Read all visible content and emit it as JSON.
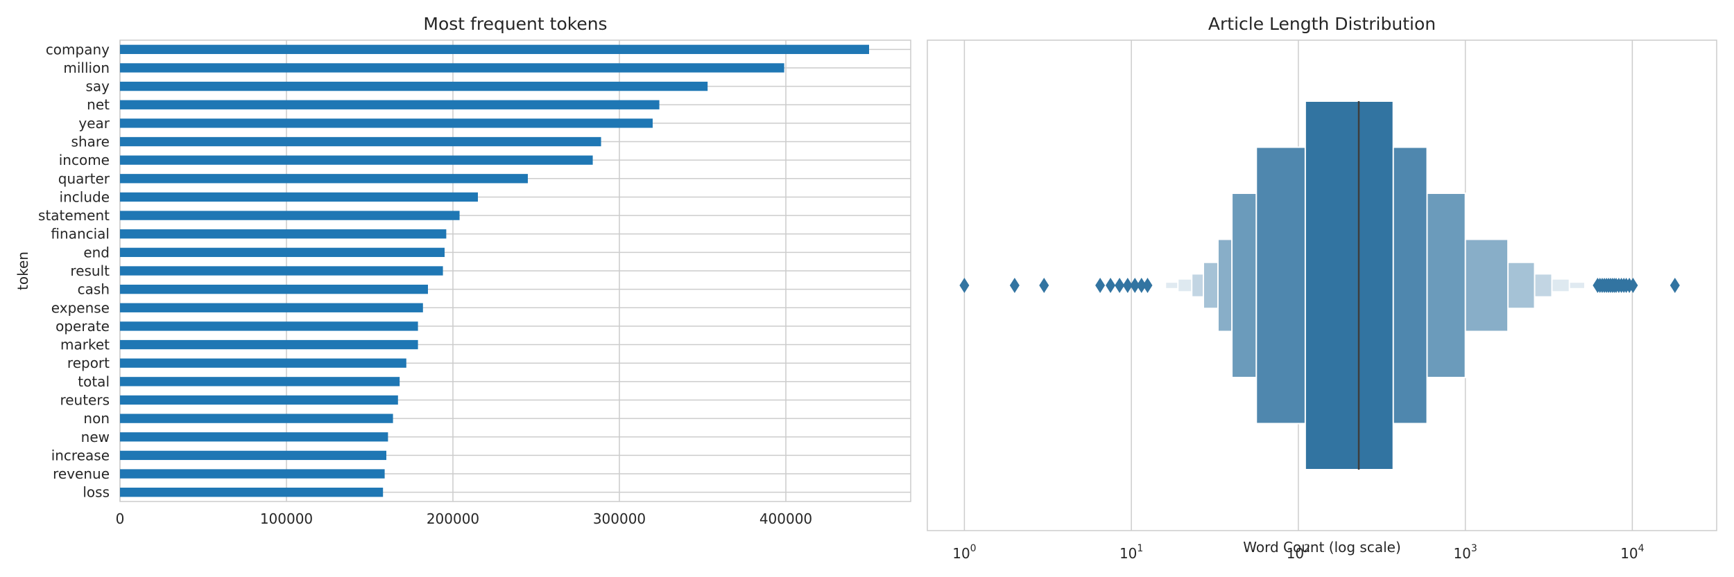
{
  "chart_data": [
    {
      "type": "bar",
      "orientation": "horizontal",
      "title": "Most frequent tokens",
      "xlabel": "",
      "ylabel": "token",
      "xlim": [
        0,
        475000
      ],
      "xticks": [
        0,
        100000,
        200000,
        300000,
        400000
      ],
      "xtick_labels": [
        "0",
        "100000",
        "200000",
        "300000",
        "400000"
      ],
      "grid": true,
      "color": "#1f77b4",
      "categories": [
        "company",
        "million",
        "say",
        "net",
        "year",
        "share",
        "income",
        "quarter",
        "include",
        "statement",
        "financial",
        "end",
        "result",
        "cash",
        "expense",
        "operate",
        "market",
        "report",
        "total",
        "reuters",
        "non",
        "new",
        "increase",
        "revenue",
        "loss"
      ],
      "values": [
        450000,
        399000,
        353000,
        324000,
        320000,
        289000,
        284000,
        245000,
        215000,
        204000,
        196000,
        195000,
        194000,
        185000,
        182000,
        179000,
        179000,
        172000,
        168000,
        167000,
        164000,
        161000,
        160000,
        159000,
        158000
      ]
    },
    {
      "type": "boxen",
      "title": "Article Length Distribution",
      "xlabel": "Word Count (log scale)",
      "ylabel": "",
      "xscale": "log",
      "xlim": [
        0.6,
        32000
      ],
      "xticks": [
        1,
        10,
        100,
        1000,
        10000
      ],
      "xtick_labels": [
        {
          "base": "10",
          "exp": "0"
        },
        {
          "base": "10",
          "exp": "1"
        },
        {
          "base": "10",
          "exp": "2"
        },
        {
          "base": "10",
          "exp": "3"
        },
        {
          "base": "10",
          "exp": "4"
        }
      ],
      "grid": true,
      "color": "#3274a1",
      "median": 230,
      "boxes": [
        {
          "low": 110,
          "high": 370,
          "height": 1.0
        },
        {
          "low": 56,
          "high": 590,
          "height": 0.75
        },
        {
          "low": 40,
          "high": 1000,
          "height": 0.5
        },
        {
          "low": 33,
          "high": 1800,
          "height": 0.25
        },
        {
          "low": 27,
          "high": 2600,
          "height": 0.125
        },
        {
          "low": 23,
          "high": 3300,
          "height": 0.0625
        },
        {
          "low": 19,
          "high": 4200,
          "height": 0.035
        },
        {
          "low": 16,
          "high": 5200,
          "height": 0.018
        }
      ],
      "outliers": [
        1,
        2,
        3,
        6.5,
        7.5,
        8.5,
        9.5,
        10.5,
        11.5,
        12.5,
        6200,
        6400,
        6600,
        6800,
        7000,
        7200,
        7400,
        7600,
        7800,
        8000,
        8300,
        8600,
        8900,
        9200,
        9600,
        10100,
        18000
      ]
    }
  ]
}
